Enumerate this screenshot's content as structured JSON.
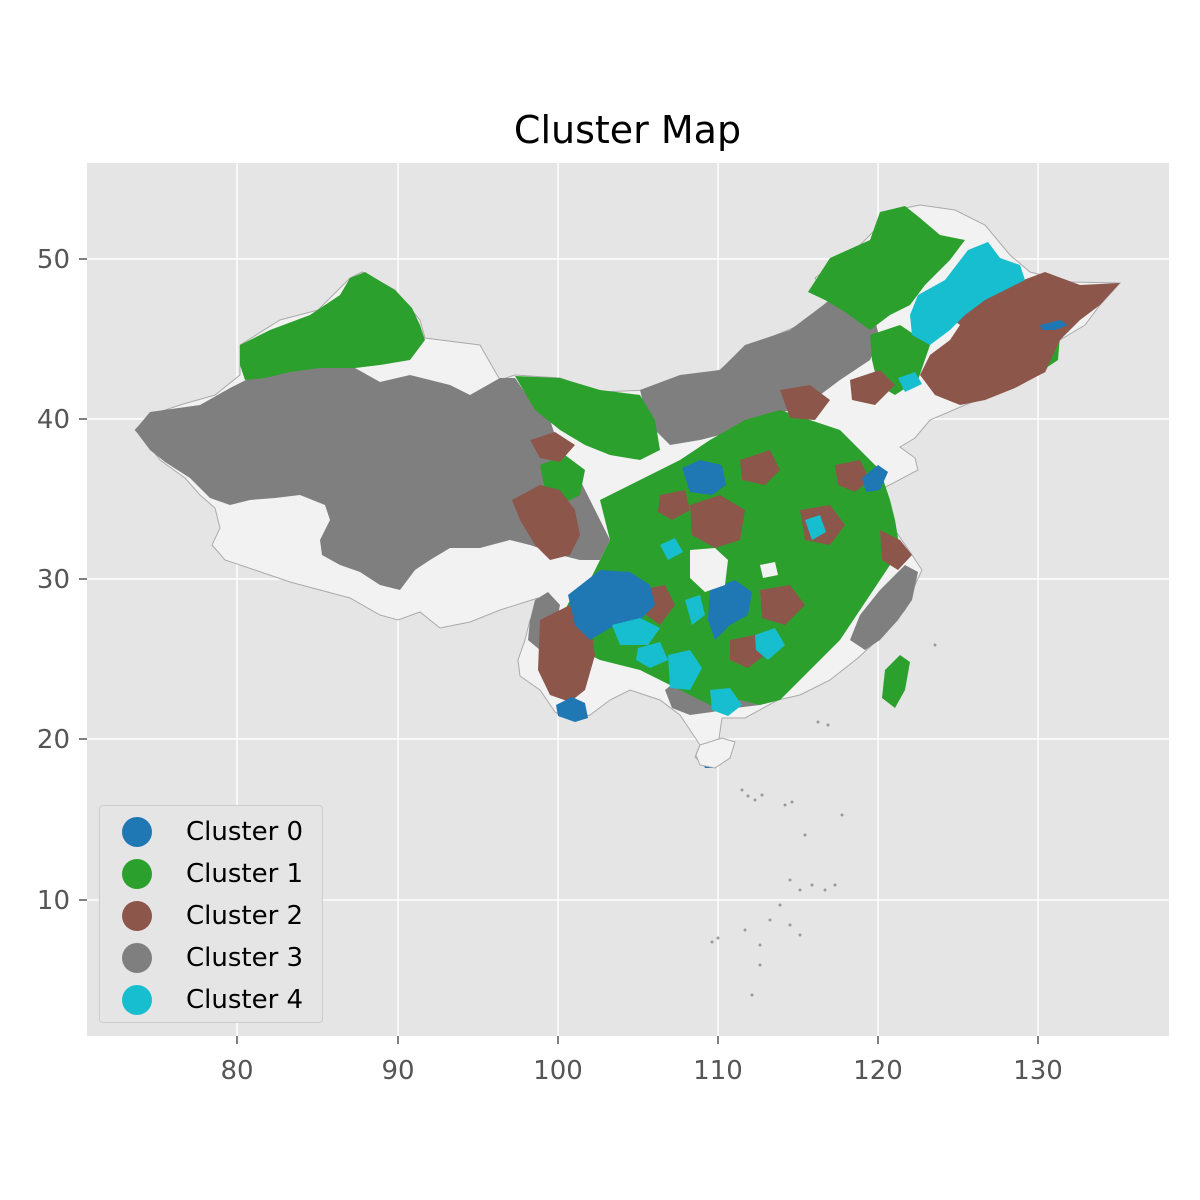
{
  "title": "Cluster Map",
  "axes": {
    "x_ticks": [
      "80",
      "90",
      "100",
      "110",
      "120",
      "130"
    ],
    "y_ticks": [
      "10",
      "20",
      "30",
      "40",
      "50"
    ]
  },
  "legend": [
    {
      "label": "Cluster 0",
      "color": "#1f77b4"
    },
    {
      "label": "Cluster 1",
      "color": "#2ca02c"
    },
    {
      "label": "Cluster 2",
      "color": "#8c564b"
    },
    {
      "label": "Cluster 3",
      "color": "#7f7f7f"
    },
    {
      "label": "Cluster 4",
      "color": "#17becf"
    }
  ],
  "colors": {
    "background": "#e5e5e5",
    "grid": "#ffffff",
    "unassigned": "#f2f2f2",
    "outline": "#aaaaaa"
  },
  "chart_data": {
    "type": "map",
    "title": "Cluster Map",
    "xlabel": "",
    "ylabel": "",
    "xlim": [
      70.5,
      138
    ],
    "ylim": [
      1.5,
      56
    ],
    "grid": true,
    "legend_position": "bottom-left",
    "series": [
      {
        "name": "Cluster 0",
        "color": "#1f77b4"
      },
      {
        "name": "Cluster 1",
        "color": "#2ca02c"
      },
      {
        "name": "Cluster 2",
        "color": "#8c564b"
      },
      {
        "name": "Cluster 3",
        "color": "#7f7f7f"
      },
      {
        "name": "Cluster 4",
        "color": "#17becf"
      }
    ]
  }
}
